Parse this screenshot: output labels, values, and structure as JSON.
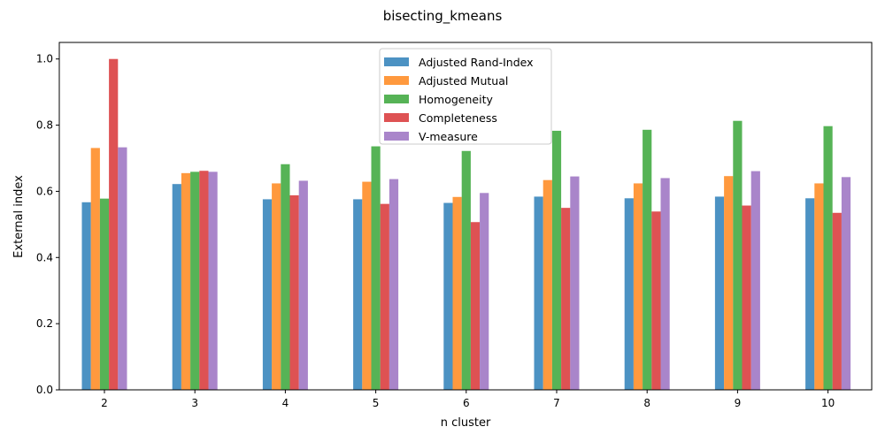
{
  "chart_data": {
    "type": "bar",
    "title": "bisecting_kmeans",
    "xlabel": "n cluster",
    "ylabel": "External index",
    "categories": [
      "2",
      "3",
      "4",
      "5",
      "6",
      "7",
      "8",
      "9",
      "10"
    ],
    "ylim": [
      0,
      1.05
    ],
    "yticks": [
      "0.0",
      "0.2",
      "0.4",
      "0.6",
      "0.8",
      "1.0"
    ],
    "grid": false,
    "legend_position": "top-center",
    "series": [
      {
        "name": "Adjusted Rand-Index",
        "color": "#1f77b4",
        "values": [
          0.567,
          0.622,
          0.576,
          0.576,
          0.565,
          0.584,
          0.579,
          0.584,
          0.579
        ]
      },
      {
        "name": "Adjusted Mutual",
        "color": "#ff7f0e",
        "values": [
          0.731,
          0.655,
          0.624,
          0.629,
          0.583,
          0.634,
          0.624,
          0.646,
          0.624
        ]
      },
      {
        "name": "Homogeneity",
        "color": "#2ca02c",
        "values": [
          0.578,
          0.659,
          0.682,
          0.736,
          0.722,
          0.783,
          0.786,
          0.813,
          0.797
        ]
      },
      {
        "name": "Completeness",
        "color": "#d62728",
        "values": [
          1.0,
          0.662,
          0.588,
          0.562,
          0.507,
          0.55,
          0.539,
          0.557,
          0.535
        ]
      },
      {
        "name": "V-measure",
        "color": "#9467bd",
        "values": [
          0.733,
          0.659,
          0.632,
          0.637,
          0.595,
          0.645,
          0.64,
          0.661,
          0.643
        ]
      }
    ]
  }
}
